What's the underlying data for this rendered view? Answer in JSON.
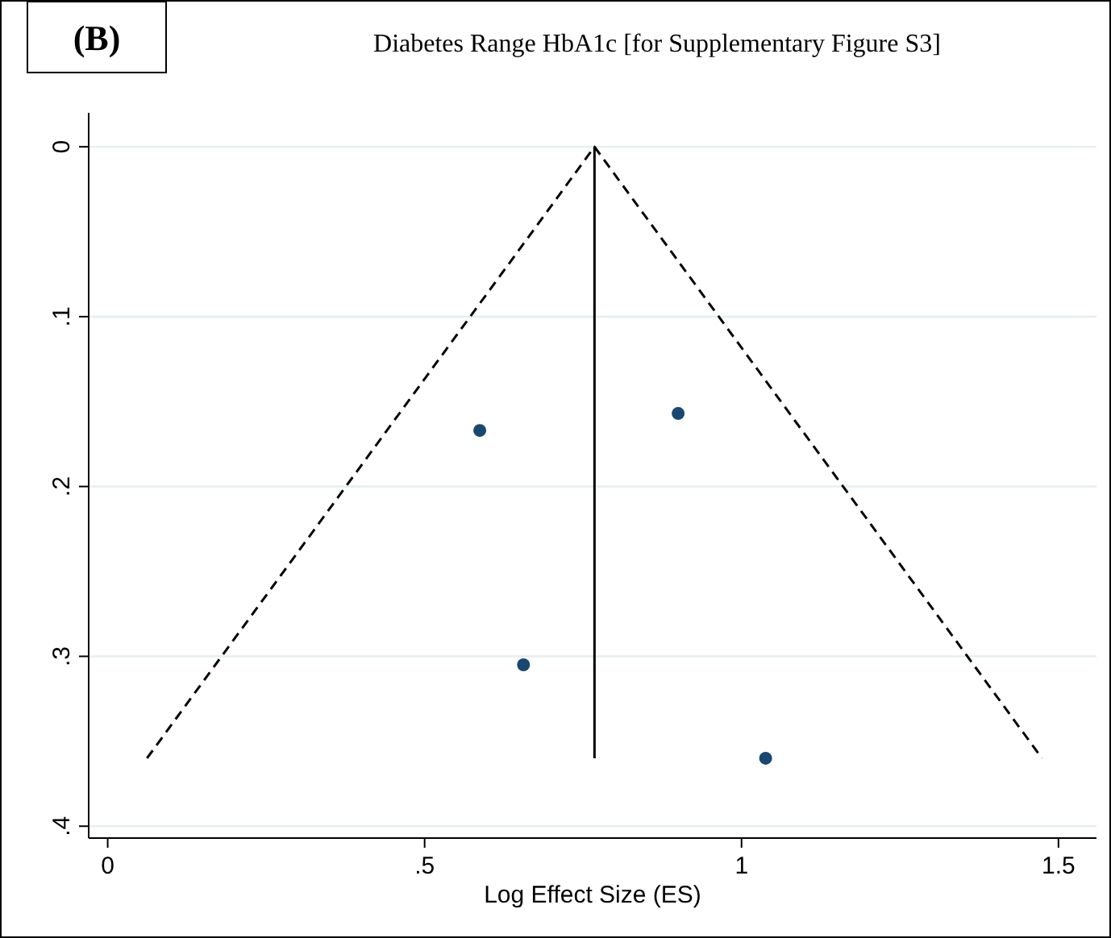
{
  "chart_data": {
    "type": "scatter",
    "title": "Diabetes Range HbA1c [for Supplementary Figure S3]",
    "xlabel": "Log Effect Size (ES)",
    "annotations": [
      "(B)"
    ],
    "xlim": [
      -0.03,
      1.56
    ],
    "xticks": [
      0,
      {
        "value": 0.5,
        "label": ".5"
      },
      1,
      1.5
    ],
    "ylim": [
      0.407,
      -0.02
    ],
    "yticks": [
      0,
      {
        "value": 0.1,
        "label": ".1"
      },
      {
        "value": 0.2,
        "label": ".2"
      },
      {
        "value": 0.3,
        "label": ".3"
      },
      {
        "value": 0.4,
        "label": ".4"
      }
    ],
    "grid": "y",
    "series": [
      {
        "color": "#1a476f",
        "marker": "circle",
        "x": [
          0.587,
          0.9,
          0.656,
          1.038
        ],
        "values": [
          0.167,
          0.157,
          0.305,
          0.36
        ]
      },
      {
        "type": "line",
        "color": "#000000",
        "line_style": "solid",
        "marker": "none",
        "x": [
          0.768,
          0.768
        ],
        "values": [
          0,
          0.36
        ]
      },
      {
        "type": "line",
        "color": "#000000",
        "line_style": "dashed",
        "marker": "none",
        "x": [
          0.062,
          0.768,
          1.474
        ],
        "values": [
          0.36,
          0,
          0.36
        ]
      }
    ]
  }
}
